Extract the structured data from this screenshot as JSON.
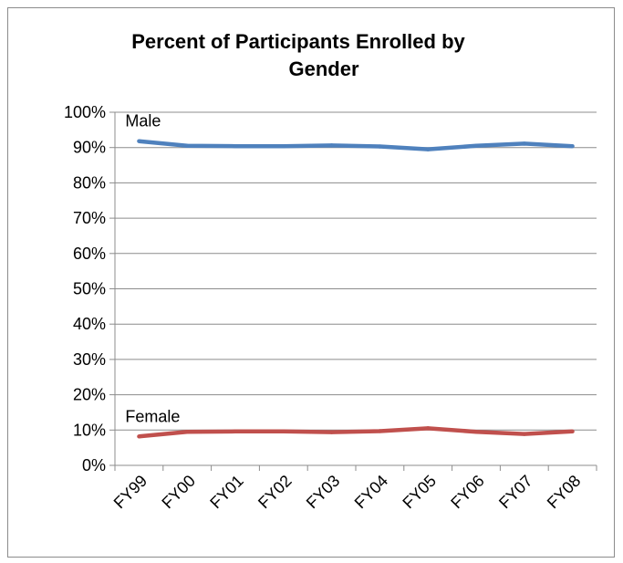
{
  "chart_data": {
    "type": "line",
    "title_lines": [
      "Percent of Participants Enrolled by",
      "Gender"
    ],
    "categories": [
      "FY99",
      "FY00",
      "FY01",
      "FY02",
      "FY03",
      "FY04",
      "FY05",
      "FY06",
      "FY07",
      "FY08"
    ],
    "ylim": [
      0,
      100
    ],
    "y_ticks": [
      "0%",
      "10%",
      "20%",
      "30%",
      "40%",
      "50%",
      "60%",
      "70%",
      "80%",
      "90%",
      "100%"
    ],
    "grid": true,
    "legend": "none",
    "series": [
      {
        "name": "Male",
        "color": "#4f81bd",
        "values": [
          91.8,
          90.5,
          90.4,
          90.4,
          90.6,
          90.3,
          89.5,
          90.5,
          91.1,
          90.4
        ]
      },
      {
        "name": "Female",
        "color": "#c0504d",
        "values": [
          8.2,
          9.5,
          9.6,
          9.6,
          9.4,
          9.7,
          10.5,
          9.5,
          8.9,
          9.6
        ]
      }
    ]
  }
}
